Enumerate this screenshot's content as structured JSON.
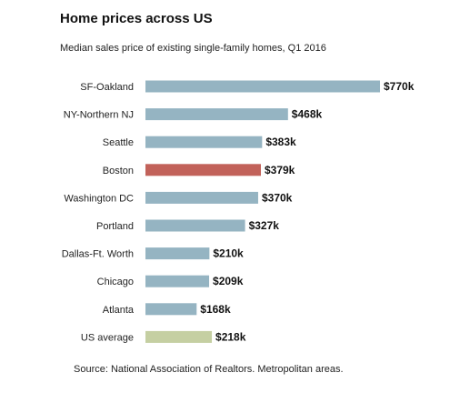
{
  "title": "Home prices across US",
  "subtitle": "Median sales price of existing single-family homes, Q1 2016",
  "source": "Source: National Association of Realtors. Metropolitan areas.",
  "colors": {
    "default": "#95b4c2",
    "highlight": "#c2625a",
    "average": "#c5cfa2"
  },
  "chart_data": {
    "type": "bar",
    "orientation": "horizontal",
    "title": "Home prices across US",
    "subtitle": "Median sales price of existing single-family homes, Q1 2016",
    "categories": [
      "SF-Oakland",
      "NY-Northern NJ",
      "Seattle",
      "Boston",
      "Washington DC",
      "Portland",
      "Dallas-Ft. Worth",
      "Chicago",
      "Atlanta",
      "US average"
    ],
    "values": [
      770,
      468,
      383,
      379,
      370,
      327,
      210,
      209,
      168,
      218
    ],
    "value_labels": [
      "$770k",
      "$468k",
      "$383k",
      "$379k",
      "$370k",
      "$327k",
      "$210k",
      "$209k",
      "$168k",
      "$218k"
    ],
    "highlight": [
      "default",
      "default",
      "default",
      "highlight",
      "default",
      "default",
      "default",
      "default",
      "default",
      "average"
    ],
    "unit": "$k",
    "grid": false,
    "legend": "none",
    "source": "Source: National Association of Realtors. Metropolitan areas."
  }
}
